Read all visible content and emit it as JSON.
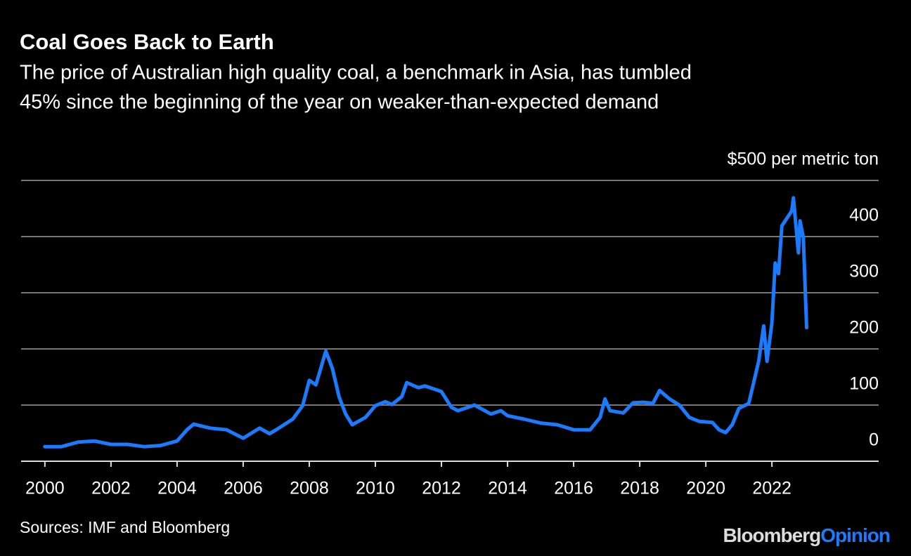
{
  "chart_data": {
    "type": "line",
    "title": "Coal Goes Back to Earth",
    "subtitle": [
      "The price of Australian high quality coal, a benchmark in Asia, has tumbled",
      "45% since the beginning of the year on weaker-than-expected demand"
    ],
    "source": "Sources: IMF and Bloomberg",
    "brand": "Bloomberg",
    "brand_section": "Opinion",
    "x": [
      2000.0,
      2000.5,
      2001.0,
      2001.5,
      2002.0,
      2002.5,
      2003.0,
      2003.5,
      2004.0,
      2004.3,
      2004.5,
      2005.0,
      2005.5,
      2006.0,
      2006.5,
      2006.8,
      2007.0,
      2007.5,
      2007.8,
      2008.0,
      2008.2,
      2008.5,
      2008.7,
      2008.9,
      2009.1,
      2009.3,
      2009.7,
      2010.0,
      2010.3,
      2010.5,
      2010.8,
      2010.95,
      2011.3,
      2011.5,
      2012.0,
      2012.3,
      2012.5,
      2013.0,
      2013.5,
      2013.8,
      2014.0,
      2014.5,
      2015.0,
      2015.5,
      2016.0,
      2016.5,
      2016.8,
      2016.95,
      2017.1,
      2017.5,
      2017.8,
      2018.1,
      2018.4,
      2018.6,
      2018.9,
      2019.2,
      2019.5,
      2019.8,
      2020.2,
      2020.4,
      2020.6,
      2020.8,
      2021.0,
      2021.3,
      2021.6,
      2021.75,
      2021.85,
      2022.0,
      2022.1,
      2022.2,
      2022.3,
      2022.6,
      2022.65,
      2022.8,
      2022.85,
      2022.95,
      2023.05
    ],
    "series": [
      {
        "name": "Australian coal price",
        "color": "#1a7bff",
        "values": [
          26,
          26,
          34,
          36,
          30,
          30,
          26,
          28,
          36,
          56,
          66,
          59,
          56,
          41,
          59,
          49,
          56,
          75,
          99,
          144,
          136,
          196,
          165,
          115,
          84,
          65,
          78,
          99,
          106,
          101,
          115,
          140,
          131,
          134,
          124,
          96,
          90,
          100,
          84,
          90,
          81,
          75,
          68,
          65,
          56,
          56,
          78,
          111,
          90,
          86,
          104,
          105,
          103,
          126,
          111,
          100,
          78,
          71,
          69,
          56,
          51,
          65,
          94,
          103,
          178,
          241,
          178,
          246,
          353,
          334,
          419,
          446,
          469,
          371,
          428,
          399,
          238
        ]
      }
    ],
    "xlim": [
      1999.28,
      2025.23
    ],
    "xticks": [
      2000,
      2002,
      2004,
      2006,
      2008,
      2010,
      2012,
      2014,
      2016,
      2018,
      2020,
      2022
    ],
    "ylim": [
      0,
      500
    ],
    "yticks": [
      0,
      100,
      200,
      300,
      400,
      {
        "value": 500,
        "label": "$500 per metric ton"
      }
    ],
    "grid": true
  }
}
